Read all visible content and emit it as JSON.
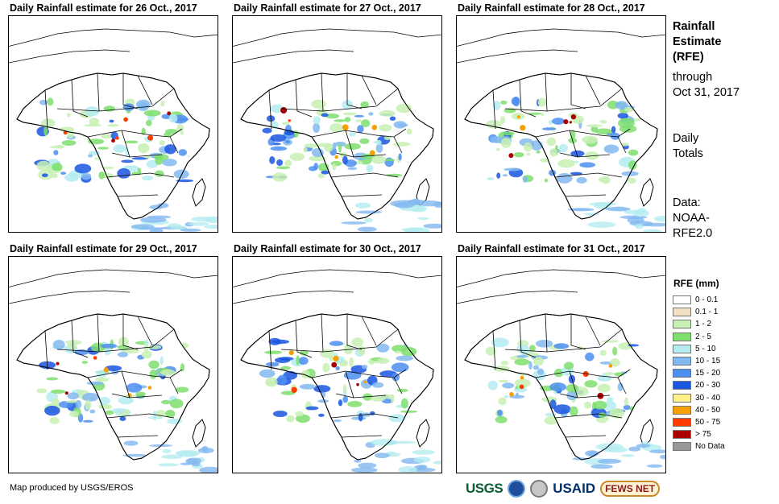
{
  "panels": [
    {
      "title": "Daily Rainfall estimate for 26 Oct., 2017"
    },
    {
      "title": "Daily Rainfall estimate for 27 Oct., 2017"
    },
    {
      "title": "Daily Rainfall estimate for 28 Oct., 2017"
    },
    {
      "title": "Daily Rainfall estimate for 29 Oct., 2017"
    },
    {
      "title": "Daily Rainfall estimate for 30 Oct., 2017"
    },
    {
      "title": "Daily Rainfall estimate for 31 Oct., 2017"
    }
  ],
  "side": {
    "title_lines": [
      "Rainfall",
      "Estimate",
      "(RFE)"
    ],
    "through_lines": [
      "through",
      "Oct 31, 2017"
    ],
    "totals_lines": [
      "Daily",
      "Totals"
    ],
    "data_lines": [
      "Data:",
      "NOAA-",
      "RFE2.0"
    ]
  },
  "legend": {
    "title": "RFE (mm)",
    "items": [
      {
        "label": "0 - 0.1",
        "color": "#ffffff"
      },
      {
        "label": "0.1 - 1",
        "color": "#f0dfc0"
      },
      {
        "label": "1 - 2",
        "color": "#c8f0b4"
      },
      {
        "label": "2 - 5",
        "color": "#7ede6e"
      },
      {
        "label": "5 - 10",
        "color": "#b4ecf0"
      },
      {
        "label": "10 - 15",
        "color": "#82b8f0"
      },
      {
        "label": "15 - 20",
        "color": "#4c8ef0"
      },
      {
        "label": "20 - 30",
        "color": "#1a56e0"
      },
      {
        "label": "30 - 40",
        "color": "#fff08c"
      },
      {
        "label": "40 - 50",
        "color": "#f5a000"
      },
      {
        "label": "50 - 75",
        "color": "#ff3c00"
      },
      {
        "label": "> 75",
        "color": "#a80000"
      },
      {
        "label": "No Data",
        "color": "#999999"
      }
    ]
  },
  "footer": {
    "credit": "Map produced by USGS/EROS"
  },
  "logos": {
    "usgs": "USGS",
    "usaid": "USAID",
    "fews": "FEWS NET"
  }
}
